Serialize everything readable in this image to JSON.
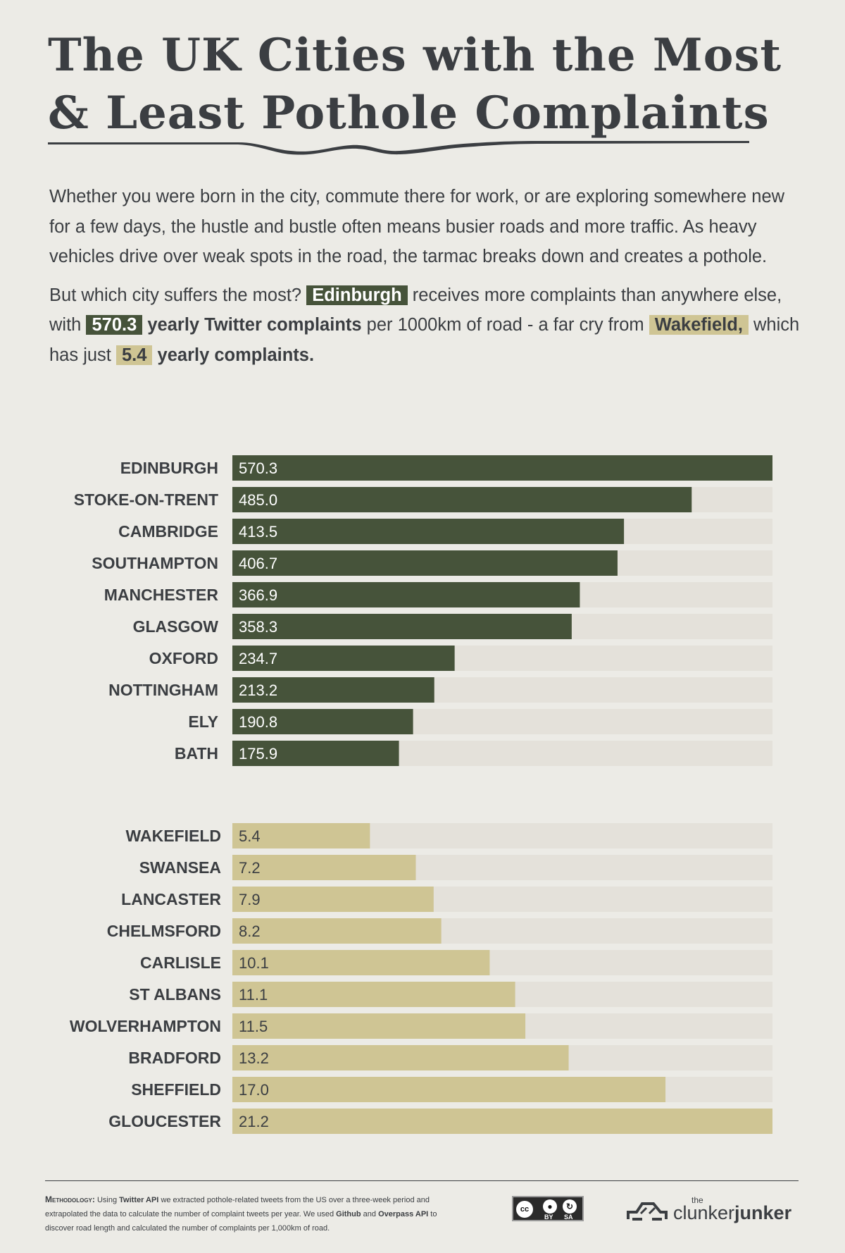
{
  "title": {
    "line1": "The UK Cities with the Most",
    "line2": "& Least Pothole Complaints"
  },
  "intro": {
    "p1": "Whether you were born in the city, commute there for work, or are exploring somewhere new for a few days, the hustle and bustle often means busier roads and more traffic. As heavy vehicles drive over weak spots in the road, the tarmac breaks down and creates a pothole.",
    "p2_a": "But which city suffers the most?",
    "p2_city_most": "Edinburgh",
    "p2_b": "receives more complaints than anywhere else, with",
    "p2_value_most": "570.3",
    "p2_c": "yearly Twitter complaints",
    "p2_d": "per 1000km of road - a far cry from",
    "p2_city_least": "Wakefield,",
    "p2_e": "which has just",
    "p2_value_least": "5.4",
    "p2_f": "yearly complaints."
  },
  "colors": {
    "most": "#46533a",
    "least": "#cfc594",
    "track": "#e4e1da",
    "text": "#3b3e42",
    "background": "#ecebe6"
  },
  "chart_data": [
    {
      "type": "bar",
      "orientation": "horizontal",
      "group": "most",
      "categories": [
        "EDINBURGH",
        "STOKE-ON-TRENT",
        "CAMBRIDGE",
        "SOUTHAMPTON",
        "MANCHESTER",
        "GLASGOW",
        "OXFORD",
        "NOTTINGHAM",
        "ELY",
        "BATH"
      ],
      "values": [
        570.3,
        485.0,
        413.5,
        406.7,
        366.9,
        358.3,
        234.7,
        213.2,
        190.8,
        175.9
      ],
      "value_labels": [
        "570.3",
        "485.0",
        "413.5",
        "406.7",
        "366.9",
        "358.3",
        "234.7",
        "213.2",
        "190.8",
        "175.9"
      ],
      "xlim": [
        0,
        570.3
      ],
      "title": "",
      "xlabel": "",
      "ylabel": "",
      "grid": false
    },
    {
      "type": "bar",
      "orientation": "horizontal",
      "group": "least",
      "categories": [
        "WAKEFIELD",
        "SWANSEA",
        "LANCASTER",
        "CHELMSFORD",
        "CARLISLE",
        "ST ALBANS",
        "WOLVERHAMPTON",
        "BRADFORD",
        "SHEFFIELD",
        "GLOUCESTER"
      ],
      "values": [
        5.4,
        7.2,
        7.9,
        8.2,
        10.1,
        11.1,
        11.5,
        13.2,
        17.0,
        21.2
      ],
      "value_labels": [
        "5.4",
        "7.2",
        "7.9",
        "8.2",
        "10.1",
        "11.1",
        "11.5",
        "13.2",
        "17.0",
        "21.2"
      ],
      "xlim": [
        0,
        21.2
      ],
      "title": "",
      "xlabel": "",
      "ylabel": "",
      "grid": false
    }
  ],
  "footer": {
    "methodology_label": "Methodology:",
    "methodology_1": "Using",
    "methodology_twitter": "Twitter API",
    "methodology_2": "we extracted pothole-related tweets from the US over a three-week period and extrapolated the data to calculate the number of complaint tweets per year. We used",
    "methodology_github": "Github",
    "methodology_3": "and",
    "methodology_overpass": "Overpass API",
    "methodology_4": "to discover road length and calculated the number of complaints per 1,000km of road.",
    "license": {
      "cc": "cc",
      "by": "BY",
      "sa": "SA"
    },
    "brand": {
      "the": "the",
      "clunker": "clunker",
      "junker": "junker"
    }
  }
}
